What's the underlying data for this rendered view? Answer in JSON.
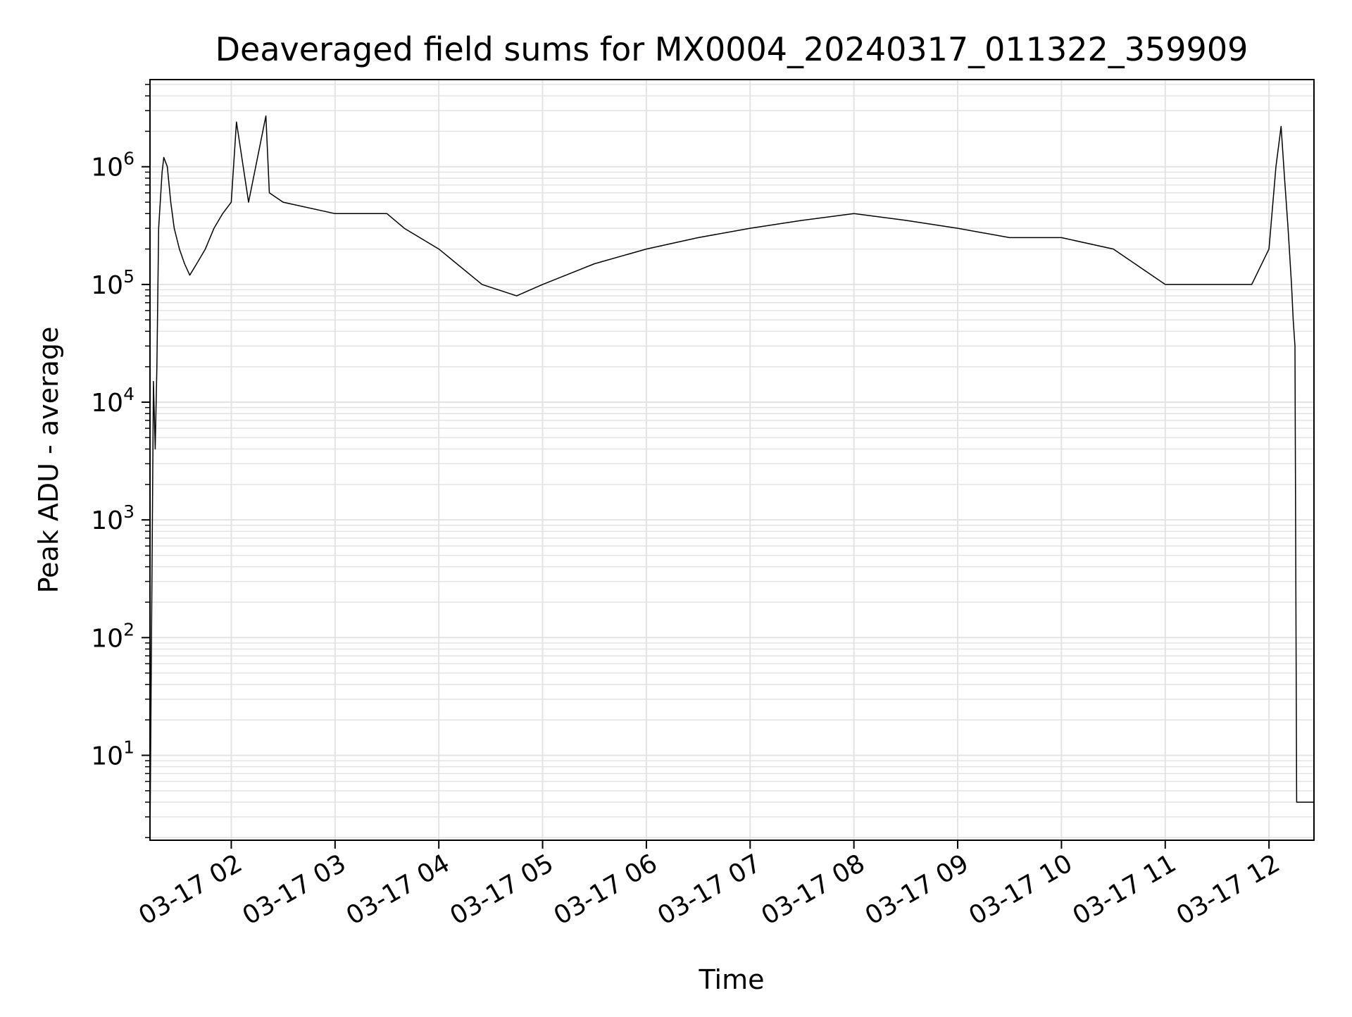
{
  "chart_data": {
    "type": "line",
    "title": "Deaveraged field sums for MX0004_20240317_011322_359909",
    "xlabel": "Time",
    "ylabel": "Peak ADU - average",
    "yscale": "log",
    "grid": true,
    "grid_minor": true,
    "line_color": "#000000",
    "grid_color": "#e3e3e3",
    "xlim": [
      "2024-03-17 01:13",
      "2024-03-17 12:26"
    ],
    "ylim": [
      1.9,
      5500000
    ],
    "x_ticks": [
      {
        "value": "2024-03-17 02:00",
        "label": "03-17 02"
      },
      {
        "value": "2024-03-17 03:00",
        "label": "03-17 03"
      },
      {
        "value": "2024-03-17 04:00",
        "label": "03-17 04"
      },
      {
        "value": "2024-03-17 05:00",
        "label": "03-17 05"
      },
      {
        "value": "2024-03-17 06:00",
        "label": "03-17 06"
      },
      {
        "value": "2024-03-17 07:00",
        "label": "03-17 07"
      },
      {
        "value": "2024-03-17 08:00",
        "label": "03-17 08"
      },
      {
        "value": "2024-03-17 09:00",
        "label": "03-17 09"
      },
      {
        "value": "2024-03-17 10:00",
        "label": "03-17 10"
      },
      {
        "value": "2024-03-17 11:00",
        "label": "03-17 11"
      },
      {
        "value": "2024-03-17 12:00",
        "label": "03-17 12"
      }
    ],
    "y_ticks": [
      {
        "value": 10,
        "base": "10",
        "exp": "1"
      },
      {
        "value": 100,
        "base": "10",
        "exp": "2"
      },
      {
        "value": 1000,
        "base": "10",
        "exp": "3"
      },
      {
        "value": 10000,
        "base": "10",
        "exp": "4"
      },
      {
        "value": 100000,
        "base": "10",
        "exp": "5"
      },
      {
        "value": 1000000,
        "base": "10",
        "exp": "6"
      }
    ],
    "series": [
      {
        "x": [
          "2024-03-17 01:13",
          "2024-03-17 01:15",
          "2024-03-17 01:16",
          "2024-03-17 01:17",
          "2024-03-17 01:18",
          "2024-03-17 01:20",
          "2024-03-17 01:21",
          "2024-03-17 01:23",
          "2024-03-17 01:25",
          "2024-03-17 01:27",
          "2024-03-17 01:30",
          "2024-03-17 01:33",
          "2024-03-17 01:36",
          "2024-03-17 01:40",
          "2024-03-17 01:45",
          "2024-03-17 01:50",
          "2024-03-17 01:55",
          "2024-03-17 02:00",
          "2024-03-17 02:03",
          "2024-03-17 02:10",
          "2024-03-17 02:20",
          "2024-03-17 02:22",
          "2024-03-17 02:30",
          "2024-03-17 03:00",
          "2024-03-17 03:30",
          "2024-03-17 03:40",
          "2024-03-17 04:00",
          "2024-03-17 04:25",
          "2024-03-17 04:45",
          "2024-03-17 05:00",
          "2024-03-17 05:30",
          "2024-03-17 06:00",
          "2024-03-17 06:30",
          "2024-03-17 07:00",
          "2024-03-17 07:30",
          "2024-03-17 08:00",
          "2024-03-17 08:30",
          "2024-03-17 09:00",
          "2024-03-17 09:30",
          "2024-03-17 10:00",
          "2024-03-17 10:30",
          "2024-03-17 11:00",
          "2024-03-17 11:30",
          "2024-03-17 11:50",
          "2024-03-17 12:00",
          "2024-03-17 12:04",
          "2024-03-17 12:07",
          "2024-03-17 12:09",
          "2024-03-17 12:11",
          "2024-03-17 12:13",
          "2024-03-17 12:14",
          "2024-03-17 12:15",
          "2024-03-17 12:16",
          "2024-03-17 12:26"
        ],
        "y": [
          1.9,
          15000,
          4000,
          20000,
          300000,
          900000,
          1200000,
          1000000,
          500000,
          300000,
          200000,
          150000,
          120000,
          150000,
          200000,
          300000,
          400000,
          500000,
          2400000,
          500000,
          2700000,
          600000,
          500000,
          400000,
          400000,
          300000,
          200000,
          100000,
          80000,
          100000,
          150000,
          200000,
          250000,
          300000,
          350000,
          400000,
          350000,
          300000,
          250000,
          250000,
          200000,
          100000,
          100000,
          100000,
          200000,
          1000000,
          2200000,
          800000,
          300000,
          100000,
          50000,
          30000,
          4,
          4
        ]
      }
    ]
  }
}
